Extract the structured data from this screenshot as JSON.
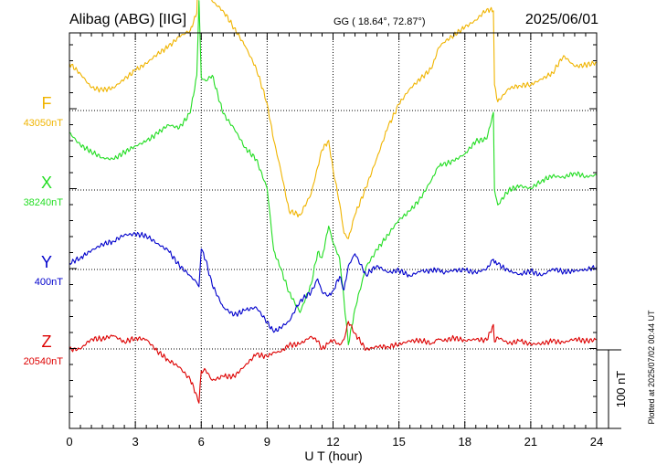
{
  "header": {
    "station": "Alibag (ABG)  [IIG]",
    "coords": "GG ( 18.64°,  72.87°)",
    "date": "2025/06/01"
  },
  "footer": {
    "plotted": "Plotted at 2025/07/02 00:44 UT"
  },
  "scale_bar": {
    "label": "100 nT",
    "value_nT": 100
  },
  "chart_data": {
    "type": "line",
    "title": "Alibag (ABG)  [IIG]",
    "xlabel": "U T (hour)",
    "ylabel": "",
    "xlim": [
      0,
      24
    ],
    "xticks": [
      0,
      3,
      6,
      9,
      12,
      15,
      18,
      21,
      24
    ],
    "grid": true,
    "scale_nT_per_division": 100,
    "series": [
      {
        "name": "F",
        "baseline_label": "43050nT",
        "baseline_nT": 43050,
        "color": "#f0b400",
        "points": [
          [
            0,
            60
          ],
          [
            0.5,
            47
          ],
          [
            1,
            29
          ],
          [
            1.5,
            26
          ],
          [
            2,
            29
          ],
          [
            2.5,
            40
          ],
          [
            3,
            51
          ],
          [
            3.5,
            60
          ],
          [
            4,
            72
          ],
          [
            4.5,
            81
          ],
          [
            5,
            94
          ],
          [
            5.5,
            102
          ],
          [
            5.8,
            124
          ],
          [
            5.9,
            215
          ],
          [
            6.0,
            182
          ],
          [
            6.2,
            160
          ],
          [
            6.5,
            139
          ],
          [
            7.0,
            127
          ],
          [
            7.5,
            105
          ],
          [
            8.0,
            82
          ],
          [
            8.5,
            54
          ],
          [
            9.0,
            9
          ],
          [
            9.3,
            -38
          ],
          [
            9.6,
            -73
          ],
          [
            10.0,
            -128
          ],
          [
            10.5,
            -133
          ],
          [
            11.0,
            -106
          ],
          [
            11.3,
            -72
          ],
          [
            11.5,
            -50
          ],
          [
            11.8,
            -38
          ],
          [
            12.0,
            -75
          ],
          [
            12.3,
            -118
          ],
          [
            12.5,
            -156
          ],
          [
            12.7,
            -163
          ],
          [
            13.0,
            -133
          ],
          [
            13.5,
            -98
          ],
          [
            14.0,
            -60
          ],
          [
            14.5,
            -21
          ],
          [
            15.0,
            8
          ],
          [
            15.5,
            28
          ],
          [
            16.0,
            41
          ],
          [
            16.5,
            54
          ],
          [
            16.8,
            80
          ],
          [
            17.0,
            86
          ],
          [
            17.5,
            96
          ],
          [
            18.0,
            106
          ],
          [
            18.5,
            115
          ],
          [
            19.0,
            129
          ],
          [
            19.3,
            127
          ],
          [
            19.35,
            33
          ],
          [
            19.5,
            11
          ],
          [
            20,
            28
          ],
          [
            20.5,
            32
          ],
          [
            21,
            33
          ],
          [
            21.5,
            40
          ],
          [
            22,
            48
          ],
          [
            22.5,
            70
          ],
          [
            23,
            56
          ],
          [
            23.5,
            58
          ],
          [
            24,
            61
          ]
        ]
      },
      {
        "name": "X",
        "baseline_label": "38240nT",
        "baseline_nT": 38240,
        "color": "#22dd22",
        "points": [
          [
            0,
            73
          ],
          [
            0.5,
            57
          ],
          [
            1,
            49
          ],
          [
            1.5,
            41
          ],
          [
            2,
            39
          ],
          [
            2.5,
            48
          ],
          [
            3,
            56
          ],
          [
            3.5,
            62
          ],
          [
            4,
            72
          ],
          [
            4.5,
            83
          ],
          [
            5,
            79
          ],
          [
            5.5,
            98
          ],
          [
            5.8,
            146
          ],
          [
            5.9,
            241
          ],
          [
            6.0,
            143
          ],
          [
            6.2,
            139
          ],
          [
            6.5,
            146
          ],
          [
            7.0,
            97
          ],
          [
            7.5,
            78
          ],
          [
            8.0,
            54
          ],
          [
            8.5,
            39
          ],
          [
            9.0,
            2
          ],
          [
            9.3,
            -77
          ],
          [
            9.6,
            -99
          ],
          [
            10.0,
            -130
          ],
          [
            10.5,
            -156
          ],
          [
            11.0,
            -120
          ],
          [
            11.3,
            -79
          ],
          [
            11.5,
            -86
          ],
          [
            11.8,
            -46
          ],
          [
            12.0,
            -67
          ],
          [
            12.3,
            -87
          ],
          [
            12.5,
            -140
          ],
          [
            12.7,
            -197
          ],
          [
            13.0,
            -151
          ],
          [
            13.5,
            -98
          ],
          [
            14.0,
            -76
          ],
          [
            14.5,
            -57
          ],
          [
            15.0,
            -38
          ],
          [
            15.5,
            -27
          ],
          [
            16.0,
            -10
          ],
          [
            16.5,
            14
          ],
          [
            16.8,
            30
          ],
          [
            17.0,
            32
          ],
          [
            17.5,
            37
          ],
          [
            18.0,
            46
          ],
          [
            18.5,
            62
          ],
          [
            19.0,
            65
          ],
          [
            19.3,
            99
          ],
          [
            19.35,
            0
          ],
          [
            19.5,
            -19
          ],
          [
            20,
            0
          ],
          [
            20.5,
            5
          ],
          [
            21,
            2
          ],
          [
            21.5,
            12
          ],
          [
            22,
            18
          ],
          [
            22.5,
            16
          ],
          [
            23,
            22
          ],
          [
            23.5,
            17
          ],
          [
            24,
            19
          ]
        ]
      },
      {
        "name": "Y",
        "baseline_label": "400nT",
        "baseline_nT": 400,
        "color": "#0000cc",
        "points": [
          [
            0,
            8
          ],
          [
            0.5,
            15
          ],
          [
            1,
            24
          ],
          [
            1.5,
            32
          ],
          [
            2,
            36
          ],
          [
            2.5,
            44
          ],
          [
            3,
            45
          ],
          [
            3.5,
            43
          ],
          [
            4,
            33
          ],
          [
            4.5,
            24
          ],
          [
            5,
            5
          ],
          [
            5.5,
            -8
          ],
          [
            5.8,
            -17
          ],
          [
            5.9,
            -22
          ],
          [
            6.0,
            26
          ],
          [
            6.2,
            12
          ],
          [
            6.5,
            -20
          ],
          [
            7.0,
            -48
          ],
          [
            7.5,
            -58
          ],
          [
            8.0,
            -52
          ],
          [
            8.5,
            -48
          ],
          [
            9.0,
            -67
          ],
          [
            9.3,
            -80
          ],
          [
            9.6,
            -74
          ],
          [
            10.0,
            -66
          ],
          [
            10.5,
            -40
          ],
          [
            11.0,
            -29
          ],
          [
            11.3,
            -12
          ],
          [
            11.5,
            -29
          ],
          [
            11.8,
            -33
          ],
          [
            12.0,
            -27
          ],
          [
            12.3,
            -9
          ],
          [
            12.5,
            -26
          ],
          [
            12.7,
            5
          ],
          [
            13.0,
            20
          ],
          [
            13.5,
            -7
          ],
          [
            14.0,
            5
          ],
          [
            14.5,
            -4
          ],
          [
            15.0,
            -1
          ],
          [
            15.5,
            -8
          ],
          [
            16.0,
            -2
          ],
          [
            16.5,
            -2
          ],
          [
            16.8,
            1
          ],
          [
            17.0,
            -4
          ],
          [
            17.5,
            -1
          ],
          [
            18.0,
            -1
          ],
          [
            18.5,
            -4
          ],
          [
            19.0,
            1
          ],
          [
            19.3,
            13
          ],
          [
            19.35,
            8
          ],
          [
            19.5,
            7
          ],
          [
            20,
            -2
          ],
          [
            20.5,
            -6
          ],
          [
            21,
            -2
          ],
          [
            21.5,
            -8
          ],
          [
            22,
            1
          ],
          [
            22.5,
            -3
          ],
          [
            23,
            -2
          ],
          [
            23.5,
            0
          ],
          [
            24,
            3
          ]
        ]
      },
      {
        "name": "Z",
        "baseline_label": "20540nT",
        "baseline_nT": 20540,
        "color": "#dd0000",
        "points": [
          [
            0,
            -1
          ],
          [
            0.5,
            0
          ],
          [
            1,
            13
          ],
          [
            1.5,
            13
          ],
          [
            2,
            17
          ],
          [
            2.5,
            9
          ],
          [
            3,
            14
          ],
          [
            3.5,
            12
          ],
          [
            4,
            -3
          ],
          [
            4.5,
            -14
          ],
          [
            5,
            -23
          ],
          [
            5.5,
            -39
          ],
          [
            5.8,
            -59
          ],
          [
            5.9,
            -69
          ],
          [
            6.0,
            -28
          ],
          [
            6.2,
            -27
          ],
          [
            6.5,
            -40
          ],
          [
            7.0,
            -35
          ],
          [
            7.5,
            -35
          ],
          [
            8.0,
            -21
          ],
          [
            8.5,
            -7
          ],
          [
            9.0,
            -10
          ],
          [
            9.3,
            -4
          ],
          [
            9.6,
            -4
          ],
          [
            10.0,
            5
          ],
          [
            10.5,
            6
          ],
          [
            11.0,
            16
          ],
          [
            11.3,
            10
          ],
          [
            11.5,
            0
          ],
          [
            11.8,
            7
          ],
          [
            12.0,
            11
          ],
          [
            12.3,
            5
          ],
          [
            12.5,
            12
          ],
          [
            12.7,
            35
          ],
          [
            13.0,
            20
          ],
          [
            13.5,
            -1
          ],
          [
            14.0,
            3
          ],
          [
            14.5,
            3
          ],
          [
            15.0,
            6
          ],
          [
            15.5,
            10
          ],
          [
            16.0,
            11
          ],
          [
            16.5,
            7
          ],
          [
            16.8,
            13
          ],
          [
            17.0,
            10
          ],
          [
            17.5,
            14
          ],
          [
            18.0,
            11
          ],
          [
            18.5,
            12
          ],
          [
            19.0,
            11
          ],
          [
            19.3,
            31
          ],
          [
            19.35,
            9
          ],
          [
            19.5,
            15
          ],
          [
            20,
            7
          ],
          [
            20.5,
            10
          ],
          [
            21,
            6
          ],
          [
            21.5,
            7
          ],
          [
            22,
            10
          ],
          [
            22.5,
            8
          ],
          [
            23,
            13
          ],
          [
            23.5,
            10
          ],
          [
            24,
            12
          ]
        ]
      }
    ]
  }
}
